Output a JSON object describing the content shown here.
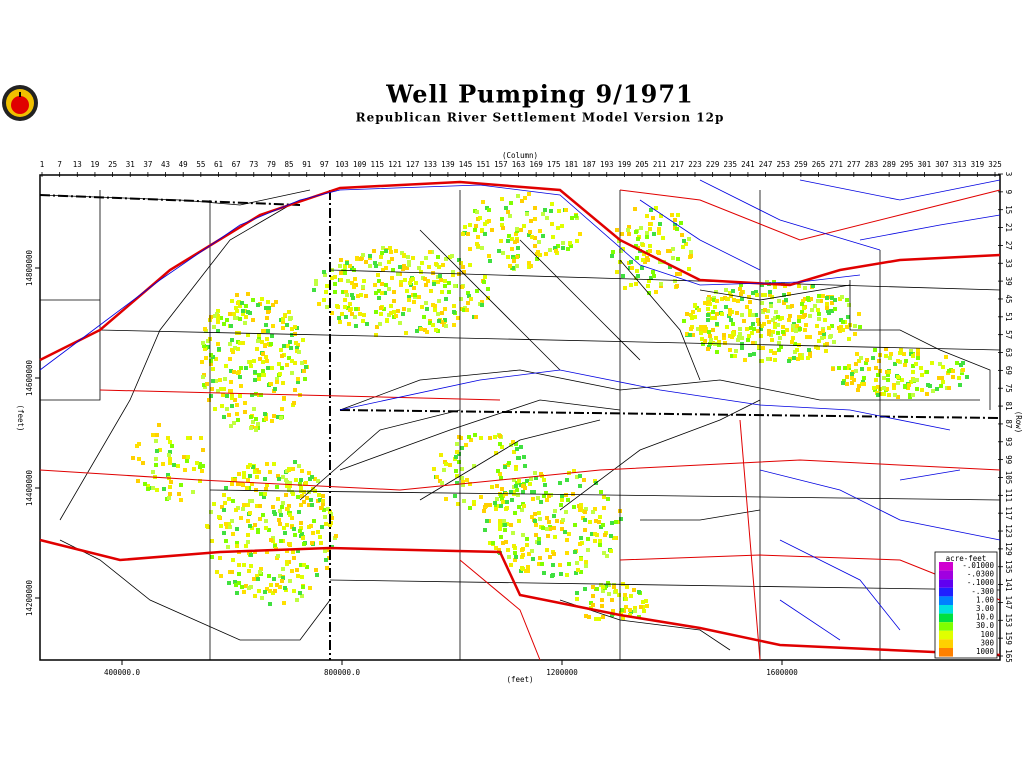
{
  "header": {
    "title": "Well Pumping  9/1971",
    "subtitle": "Republican River Settlement Model Version 12p"
  },
  "axes": {
    "column_label": "(Column)",
    "row_label": "(Row)",
    "x_feet_label": "(feet)",
    "y_feet_label": "(feet)",
    "column_ticks": [
      1,
      7,
      13,
      19,
      25,
      31,
      37,
      43,
      49,
      55,
      61,
      67,
      73,
      79,
      85,
      91,
      97,
      103,
      109,
      115,
      121,
      127,
      133,
      139,
      145,
      151,
      157,
      163,
      169,
      175,
      181,
      187,
      193,
      199,
      205,
      211,
      217,
      223,
      229,
      235,
      241,
      247,
      253,
      259,
      265,
      271,
      277,
      283,
      289,
      295,
      301,
      307,
      313,
      319,
      325
    ],
    "row_ticks": [
      3,
      9,
      15,
      21,
      27,
      33,
      39,
      45,
      51,
      57,
      63,
      69,
      75,
      81,
      87,
      93,
      99,
      105,
      111,
      117,
      123,
      129,
      135,
      141,
      147,
      153,
      159,
      165
    ],
    "x_feet_ticks": [
      {
        "value": 400000,
        "label": "400000.0"
      },
      {
        "value": 800000,
        "label": "800000.0"
      },
      1200000,
      1600000
    ],
    "y_feet_ticks": [
      14800000,
      14600000,
      14400000,
      14200000
    ]
  },
  "legend": {
    "title": "acre-feet",
    "entries": [
      {
        "label": "-.01000",
        "color": "#d000d0"
      },
      {
        "label": "-.0300",
        "color": "#a000e0"
      },
      {
        "label": "-.1000",
        "color": "#6000f0"
      },
      {
        "label": "-.300",
        "color": "#2020ff"
      },
      {
        "label": "1.00",
        "color": "#0080ff"
      },
      {
        "label": "3.00",
        "color": "#00e0e0"
      },
      {
        "label": "10.0",
        "color": "#00e040"
      },
      {
        "label": "30.0",
        "color": "#80ff00"
      },
      {
        "label": "100",
        "color": "#e0ff00"
      },
      {
        "label": "300",
        "color": "#ffd000"
      },
      {
        "label": "1000",
        "color": "#ff8000"
      }
    ]
  }
}
